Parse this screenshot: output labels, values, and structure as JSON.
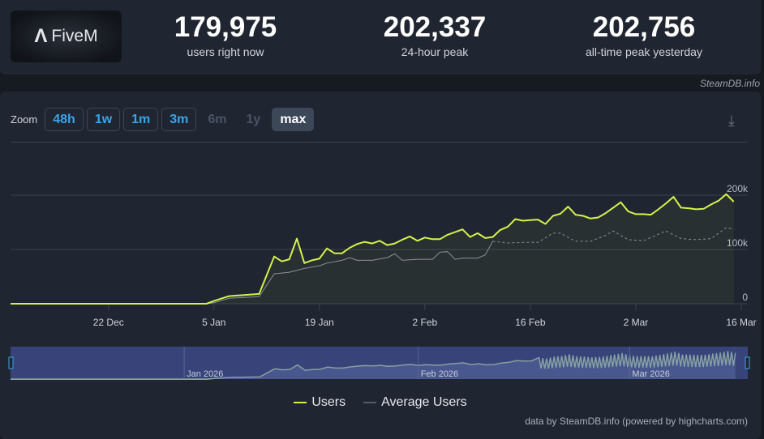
{
  "header": {
    "app_name": "FiveM",
    "stats": [
      {
        "value": "179,975",
        "label": "users right now"
      },
      {
        "value": "202,337",
        "label": "24-hour peak"
      },
      {
        "value": "202,756",
        "label": "all-time peak yesterday"
      }
    ],
    "credit": "SteamDB.info"
  },
  "toolbar": {
    "zoom_label": "Zoom",
    "buttons": [
      {
        "label": "48h",
        "state": "enabled"
      },
      {
        "label": "1w",
        "state": "enabled"
      },
      {
        "label": "1m",
        "state": "enabled"
      },
      {
        "label": "3m",
        "state": "enabled"
      },
      {
        "label": "6m",
        "state": "disabled"
      },
      {
        "label": "1y",
        "state": "disabled"
      },
      {
        "label": "max",
        "state": "active"
      }
    ],
    "download_icon": "download-icon"
  },
  "colors": {
    "users": "#d4f24a",
    "average": "#8a8f96",
    "accent": "#3aa4e8"
  },
  "chart_data": {
    "type": "line",
    "x_unit": "days since 9 Dec",
    "xlim": [
      0,
      97
    ],
    "ylim": [
      0,
      200000
    ],
    "y_ticks": [
      {
        "value": 0,
        "label": "0"
      },
      {
        "value": 100000,
        "label": "100k"
      },
      {
        "value": 200000,
        "label": "200k"
      }
    ],
    "x_ticks": [
      {
        "day": 13,
        "label": "22 Dec"
      },
      {
        "day": 27,
        "label": "5 Jan"
      },
      {
        "day": 41,
        "label": "19 Jan"
      },
      {
        "day": 55,
        "label": "2 Feb"
      },
      {
        "day": 69,
        "label": "16 Feb"
      },
      {
        "day": 83,
        "label": "2 Mar"
      },
      {
        "day": 97,
        "label": "16 Mar"
      }
    ],
    "navigator_labels": [
      {
        "day": 23,
        "label": "Jan 2026"
      },
      {
        "day": 54,
        "label": "Feb 2026"
      },
      {
        "day": 82,
        "label": "Mar 2026"
      }
    ],
    "series": [
      {
        "name": "Users",
        "points": [
          [
            0,
            0
          ],
          [
            26,
            0
          ],
          [
            27,
            5000
          ],
          [
            29,
            14000
          ],
          [
            33,
            18000
          ],
          [
            35,
            87000
          ],
          [
            36,
            78000
          ],
          [
            37,
            82000
          ],
          [
            38,
            120000
          ],
          [
            39,
            75000
          ],
          [
            40,
            80000
          ],
          [
            41,
            83000
          ],
          [
            42,
            102000
          ],
          [
            43,
            93000
          ],
          [
            44,
            93000
          ],
          [
            45,
            103000
          ],
          [
            46,
            110000
          ],
          [
            47,
            114000
          ],
          [
            48,
            111000
          ],
          [
            49,
            116000
          ],
          [
            50,
            108000
          ],
          [
            51,
            111000
          ],
          [
            52,
            118000
          ],
          [
            53,
            124000
          ],
          [
            54,
            116000
          ],
          [
            55,
            122000
          ],
          [
            56,
            119000
          ],
          [
            57,
            119000
          ],
          [
            58,
            127000
          ],
          [
            59,
            132000
          ],
          [
            60,
            137000
          ],
          [
            61,
            123000
          ],
          [
            62,
            130000
          ],
          [
            63,
            121000
          ],
          [
            64,
            123000
          ],
          [
            65,
            136000
          ],
          [
            66,
            142000
          ],
          [
            67,
            156000
          ],
          [
            68,
            153000
          ],
          [
            69,
            154000
          ],
          [
            70,
            155000
          ],
          [
            71,
            147000
          ],
          [
            72,
            162000
          ],
          [
            73,
            166000
          ],
          [
            74,
            179000
          ],
          [
            75,
            164000
          ],
          [
            76,
            162000
          ],
          [
            77,
            157000
          ],
          [
            78,
            159000
          ],
          [
            79,
            167000
          ],
          [
            80,
            177000
          ],
          [
            81,
            187000
          ],
          [
            82,
            170000
          ],
          [
            83,
            165000
          ],
          [
            84,
            165000
          ],
          [
            85,
            164000
          ],
          [
            86,
            174000
          ],
          [
            87,
            185000
          ],
          [
            88,
            197000
          ],
          [
            89,
            177000
          ],
          [
            90,
            176000
          ],
          [
            91,
            174000
          ],
          [
            92,
            175000
          ],
          [
            93,
            183000
          ],
          [
            94,
            190000
          ],
          [
            95,
            202000
          ],
          [
            96,
            188000
          ]
        ]
      },
      {
        "name": "Average Users",
        "points": [
          [
            0,
            0
          ],
          [
            26,
            0
          ],
          [
            27,
            2000
          ],
          [
            29,
            10000
          ],
          [
            33,
            13000
          ],
          [
            35,
            55000
          ],
          [
            37,
            58000
          ],
          [
            39,
            65000
          ],
          [
            41,
            70000
          ],
          [
            42,
            75000
          ],
          [
            44,
            80000
          ],
          [
            45,
            85000
          ],
          [
            46,
            80000
          ],
          [
            48,
            80000
          ],
          [
            50,
            85000
          ],
          [
            51,
            92000
          ],
          [
            52,
            80000
          ],
          [
            54,
            82000
          ],
          [
            56,
            82000
          ],
          [
            57,
            95000
          ],
          [
            58,
            96000
          ],
          [
            59,
            82000
          ],
          [
            60,
            84000
          ],
          [
            62,
            84000
          ],
          [
            63,
            90000
          ],
          [
            64,
            115000
          ],
          [
            66,
            112000
          ],
          [
            68,
            113000
          ],
          [
            70,
            113000
          ],
          [
            72,
            130000
          ],
          [
            73,
            130000
          ],
          [
            75,
            115000
          ],
          [
            77,
            115000
          ],
          [
            79,
            126000
          ],
          [
            80,
            134000
          ],
          [
            82,
            118000
          ],
          [
            84,
            116000
          ],
          [
            86,
            128000
          ],
          [
            87,
            134000
          ],
          [
            89,
            120000
          ],
          [
            91,
            118000
          ],
          [
            93,
            120000
          ],
          [
            95,
            140000
          ],
          [
            96,
            137000
          ]
        ],
        "dashed_from_day": 64
      }
    ],
    "legend_position": "bottom-center"
  },
  "footer": {
    "credit": "data by SteamDB.info (powered by highcharts.com)"
  }
}
